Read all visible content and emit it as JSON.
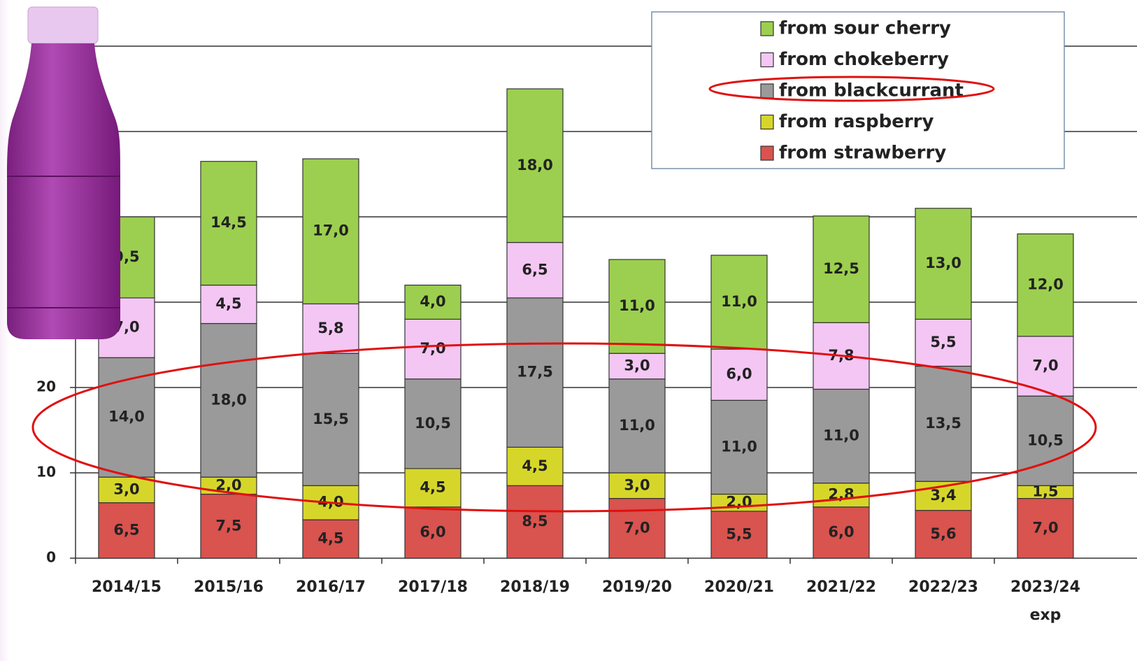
{
  "chart_data": {
    "type": "bar",
    "stacked": true,
    "categories": [
      "2014/15",
      "2015/16",
      "2016/17",
      "2017/18",
      "2018/19",
      "2019/20",
      "2020/21",
      "2021/22",
      "2022/23",
      "2023/24 exp"
    ],
    "series": [
      {
        "name": "from strawberry",
        "color": "#d9534f",
        "values": [
          6.5,
          7.5,
          4.5,
          6.0,
          8.5,
          7.0,
          5.5,
          6.0,
          5.6,
          7.0
        ],
        "value_labels": [
          "6,5",
          "7,5",
          "4,5",
          "6,0",
          "8,5",
          "7,0",
          "5,5",
          "6,0",
          "5,6",
          "7,0"
        ]
      },
      {
        "name": "from raspberry",
        "color": "#d6d62a",
        "values": [
          3.0,
          2.0,
          4.0,
          4.5,
          4.5,
          3.0,
          2.0,
          2.8,
          3.4,
          1.5
        ],
        "value_labels": [
          "3,0",
          "2,0",
          "4,0",
          "4,5",
          "4,5",
          "3,0",
          "2,0",
          "2,8",
          "3,4",
          "1,5"
        ]
      },
      {
        "name": "from blackcurrant",
        "color": "#9a9a9a",
        "values": [
          14.0,
          18.0,
          15.5,
          10.5,
          17.5,
          11.0,
          11.0,
          11.0,
          13.5,
          10.5
        ],
        "value_labels": [
          "14,0",
          "18,0",
          "15,5",
          "10,5",
          "17,5",
          "11,0",
          "11,0",
          "11,0",
          "13,5",
          "10,5"
        ]
      },
      {
        "name": "from chokeberry",
        "color": "#f4c6f4",
        "values": [
          7.0,
          4.5,
          5.8,
          7.0,
          6.5,
          3.0,
          6.0,
          7.8,
          5.5,
          7.0
        ],
        "value_labels": [
          "7,0",
          "4,5",
          "5,8",
          "7,0",
          "6,5",
          "3,0",
          "6,0",
          "7,8",
          "5,5",
          "7,0"
        ]
      },
      {
        "name": "from sour cherry",
        "color": "#9ccf4f",
        "values": [
          9.5,
          14.5,
          17.0,
          4.0,
          18.0,
          11.0,
          11.0,
          12.5,
          13.0,
          12.0
        ],
        "value_labels": [
          "9,5",
          "14,5",
          "17,0",
          "4,0",
          "18,0",
          "11,0",
          "11,0",
          "12,5",
          "13,0",
          "12,0"
        ]
      }
    ],
    "ylim": [
      0,
      60
    ],
    "yticks": [
      0,
      10,
      20,
      30,
      40,
      50,
      60
    ],
    "grid": true,
    "legend": "top-right"
  }
}
